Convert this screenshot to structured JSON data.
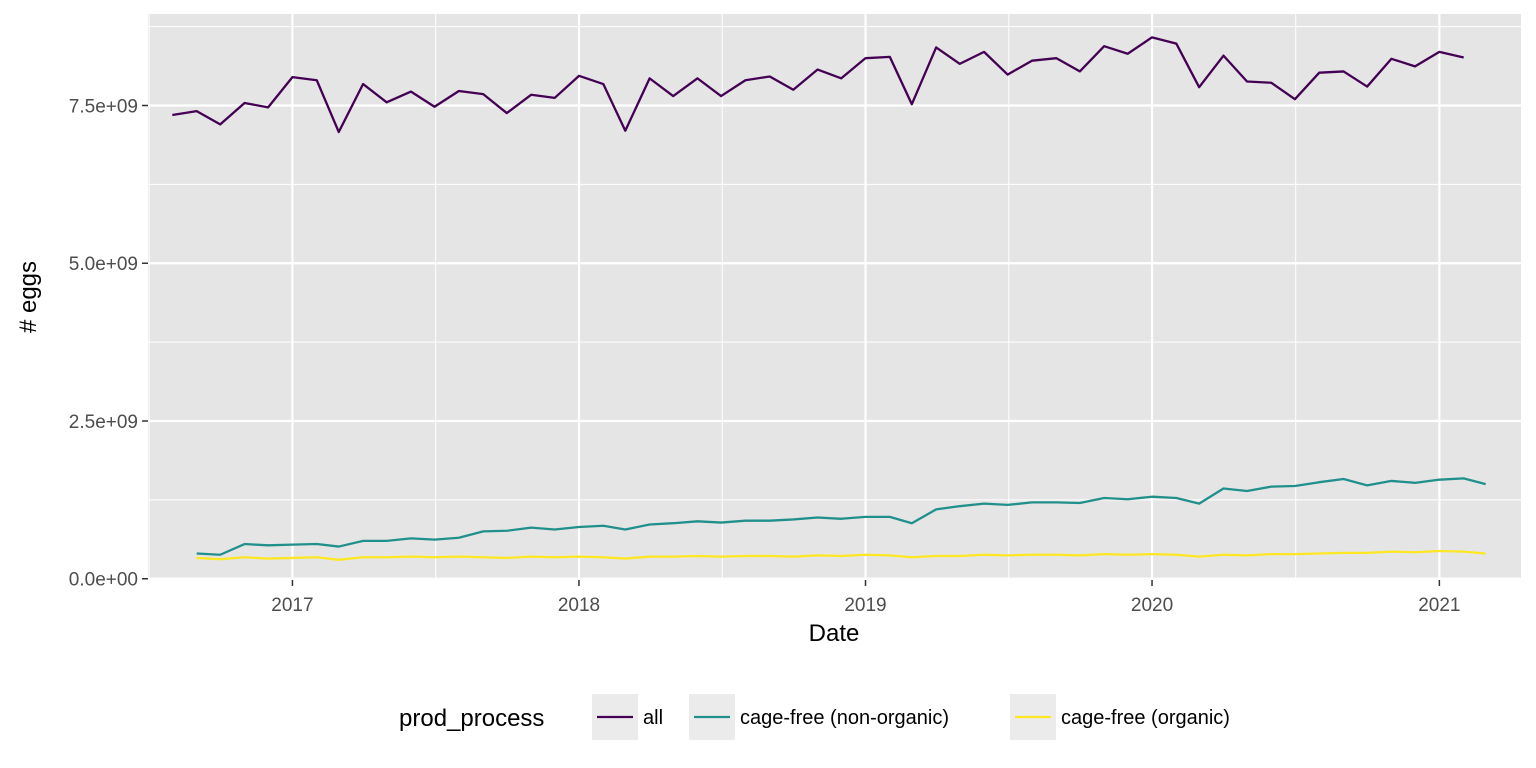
{
  "chart_data": {
    "type": "line",
    "title": "",
    "xlabel": "Date",
    "ylabel": "# eggs",
    "xlim": [
      "2016-07-01",
      "2021-04-15"
    ],
    "ylim": [
      -20000000,
      8950000000
    ],
    "x_ticks": [
      {
        "value": "2017-01-01",
        "label": "2017"
      },
      {
        "value": "2018-01-01",
        "label": "2018"
      },
      {
        "value": "2019-01-01",
        "label": "2019"
      },
      {
        "value": "2020-01-01",
        "label": "2020"
      },
      {
        "value": "2021-01-01",
        "label": "2021"
      }
    ],
    "y_ticks": [
      {
        "value": 0,
        "label": "0.0e+00"
      },
      {
        "value": 2500000000,
        "label": "2.5e+09"
      },
      {
        "value": 5000000000,
        "label": "5.0e+09"
      },
      {
        "value": 7500000000,
        "label": "7.5e+09"
      }
    ],
    "grid": true,
    "panel_background": "#e5e5e5",
    "grid_color": "#ffffff",
    "legend": {
      "title": "prod_process",
      "position": "bottom",
      "key_background": "#ebebeb"
    },
    "series": [
      {
        "name": "all",
        "color": "#440154",
        "points": [
          [
            "2016-08-01",
            7350000000
          ],
          [
            "2016-09-01",
            7410000000
          ],
          [
            "2016-10-01",
            7200000000
          ],
          [
            "2016-11-01",
            7540000000
          ],
          [
            "2016-12-01",
            7470000000
          ],
          [
            "2017-01-01",
            7950000000
          ],
          [
            "2017-02-01",
            7900000000
          ],
          [
            "2017-03-01",
            7080000000
          ],
          [
            "2017-04-01",
            7840000000
          ],
          [
            "2017-05-01",
            7550000000
          ],
          [
            "2017-06-01",
            7720000000
          ],
          [
            "2017-07-01",
            7480000000
          ],
          [
            "2017-08-01",
            7730000000
          ],
          [
            "2017-09-01",
            7680000000
          ],
          [
            "2017-10-01",
            7380000000
          ],
          [
            "2017-11-01",
            7670000000
          ],
          [
            "2017-12-01",
            7620000000
          ],
          [
            "2018-01-01",
            7970000000
          ],
          [
            "2018-02-01",
            7840000000
          ],
          [
            "2018-03-01",
            7100000000
          ],
          [
            "2018-04-01",
            7930000000
          ],
          [
            "2018-05-01",
            7650000000
          ],
          [
            "2018-06-01",
            7930000000
          ],
          [
            "2018-07-01",
            7650000000
          ],
          [
            "2018-08-01",
            7900000000
          ],
          [
            "2018-09-01",
            7960000000
          ],
          [
            "2018-10-01",
            7750000000
          ],
          [
            "2018-11-01",
            8070000000
          ],
          [
            "2018-12-01",
            7930000000
          ],
          [
            "2019-01-01",
            8250000000
          ],
          [
            "2019-02-01",
            8270000000
          ],
          [
            "2019-03-01",
            7520000000
          ],
          [
            "2019-04-01",
            8420000000
          ],
          [
            "2019-05-01",
            8160000000
          ],
          [
            "2019-06-01",
            8350000000
          ],
          [
            "2019-07-01",
            7990000000
          ],
          [
            "2019-08-01",
            8210000000
          ],
          [
            "2019-09-01",
            8250000000
          ],
          [
            "2019-10-01",
            8040000000
          ],
          [
            "2019-11-01",
            8440000000
          ],
          [
            "2019-12-01",
            8320000000
          ],
          [
            "2020-01-01",
            8580000000
          ],
          [
            "2020-02-01",
            8480000000
          ],
          [
            "2020-03-01",
            7790000000
          ],
          [
            "2020-04-01",
            8290000000
          ],
          [
            "2020-05-01",
            7880000000
          ],
          [
            "2020-06-01",
            7860000000
          ],
          [
            "2020-07-01",
            7600000000
          ],
          [
            "2020-08-01",
            8020000000
          ],
          [
            "2020-09-01",
            8040000000
          ],
          [
            "2020-10-01",
            7800000000
          ],
          [
            "2020-11-01",
            8240000000
          ],
          [
            "2020-12-01",
            8120000000
          ],
          [
            "2021-01-01",
            8350000000
          ],
          [
            "2021-02-01",
            8260000000
          ]
        ]
      },
      {
        "name": "cage-free (non-organic)",
        "color": "#21908c",
        "points": [
          [
            "2016-09-01",
            400000000
          ],
          [
            "2016-10-01",
            380000000
          ],
          [
            "2016-11-01",
            550000000
          ],
          [
            "2016-12-01",
            530000000
          ],
          [
            "2017-01-01",
            540000000
          ],
          [
            "2017-02-01",
            550000000
          ],
          [
            "2017-03-01",
            510000000
          ],
          [
            "2017-04-01",
            600000000
          ],
          [
            "2017-05-01",
            600000000
          ],
          [
            "2017-06-01",
            640000000
          ],
          [
            "2017-07-01",
            620000000
          ],
          [
            "2017-08-01",
            650000000
          ],
          [
            "2017-09-01",
            750000000
          ],
          [
            "2017-10-01",
            760000000
          ],
          [
            "2017-11-01",
            810000000
          ],
          [
            "2017-12-01",
            780000000
          ],
          [
            "2018-01-01",
            820000000
          ],
          [
            "2018-02-01",
            840000000
          ],
          [
            "2018-03-01",
            780000000
          ],
          [
            "2018-04-01",
            860000000
          ],
          [
            "2018-05-01",
            880000000
          ],
          [
            "2018-06-01",
            910000000
          ],
          [
            "2018-07-01",
            890000000
          ],
          [
            "2018-08-01",
            920000000
          ],
          [
            "2018-09-01",
            920000000
          ],
          [
            "2018-10-01",
            940000000
          ],
          [
            "2018-11-01",
            970000000
          ],
          [
            "2018-12-01",
            950000000
          ],
          [
            "2019-01-01",
            980000000
          ],
          [
            "2019-02-01",
            980000000
          ],
          [
            "2019-03-01",
            880000000
          ],
          [
            "2019-04-01",
            1100000000
          ],
          [
            "2019-05-01",
            1150000000
          ],
          [
            "2019-06-01",
            1190000000
          ],
          [
            "2019-07-01",
            1170000000
          ],
          [
            "2019-08-01",
            1210000000
          ],
          [
            "2019-09-01",
            1210000000
          ],
          [
            "2019-10-01",
            1200000000
          ],
          [
            "2019-11-01",
            1280000000
          ],
          [
            "2019-12-01",
            1260000000
          ],
          [
            "2020-01-01",
            1300000000
          ],
          [
            "2020-02-01",
            1280000000
          ],
          [
            "2020-03-01",
            1190000000
          ],
          [
            "2020-04-01",
            1430000000
          ],
          [
            "2020-05-01",
            1390000000
          ],
          [
            "2020-06-01",
            1460000000
          ],
          [
            "2020-07-01",
            1470000000
          ],
          [
            "2020-08-01",
            1530000000
          ],
          [
            "2020-09-01",
            1580000000
          ],
          [
            "2020-10-01",
            1480000000
          ],
          [
            "2020-11-01",
            1550000000
          ],
          [
            "2020-12-01",
            1520000000
          ],
          [
            "2021-01-01",
            1570000000
          ],
          [
            "2021-02-01",
            1590000000
          ],
          [
            "2021-03-01",
            1500000000
          ]
        ]
      },
      {
        "name": "cage-free (organic)",
        "color": "#fde725",
        "points": [
          [
            "2016-09-01",
            330000000
          ],
          [
            "2016-10-01",
            310000000
          ],
          [
            "2016-11-01",
            340000000
          ],
          [
            "2016-12-01",
            320000000
          ],
          [
            "2017-01-01",
            330000000
          ],
          [
            "2017-02-01",
            340000000
          ],
          [
            "2017-03-01",
            300000000
          ],
          [
            "2017-04-01",
            340000000
          ],
          [
            "2017-05-01",
            340000000
          ],
          [
            "2017-06-01",
            350000000
          ],
          [
            "2017-07-01",
            340000000
          ],
          [
            "2017-08-01",
            350000000
          ],
          [
            "2017-09-01",
            340000000
          ],
          [
            "2017-10-01",
            330000000
          ],
          [
            "2017-11-01",
            350000000
          ],
          [
            "2017-12-01",
            340000000
          ],
          [
            "2018-01-01",
            350000000
          ],
          [
            "2018-02-01",
            340000000
          ],
          [
            "2018-03-01",
            320000000
          ],
          [
            "2018-04-01",
            350000000
          ],
          [
            "2018-05-01",
            350000000
          ],
          [
            "2018-06-01",
            360000000
          ],
          [
            "2018-07-01",
            350000000
          ],
          [
            "2018-08-01",
            360000000
          ],
          [
            "2018-09-01",
            360000000
          ],
          [
            "2018-10-01",
            350000000
          ],
          [
            "2018-11-01",
            370000000
          ],
          [
            "2018-12-01",
            360000000
          ],
          [
            "2019-01-01",
            380000000
          ],
          [
            "2019-02-01",
            370000000
          ],
          [
            "2019-03-01",
            340000000
          ],
          [
            "2019-04-01",
            360000000
          ],
          [
            "2019-05-01",
            360000000
          ],
          [
            "2019-06-01",
            380000000
          ],
          [
            "2019-07-01",
            370000000
          ],
          [
            "2019-08-01",
            380000000
          ],
          [
            "2019-09-01",
            380000000
          ],
          [
            "2019-10-01",
            370000000
          ],
          [
            "2019-11-01",
            390000000
          ],
          [
            "2019-12-01",
            380000000
          ],
          [
            "2020-01-01",
            390000000
          ],
          [
            "2020-02-01",
            380000000
          ],
          [
            "2020-03-01",
            350000000
          ],
          [
            "2020-04-01",
            380000000
          ],
          [
            "2020-05-01",
            370000000
          ],
          [
            "2020-06-01",
            390000000
          ],
          [
            "2020-07-01",
            390000000
          ],
          [
            "2020-08-01",
            400000000
          ],
          [
            "2020-09-01",
            410000000
          ],
          [
            "2020-10-01",
            410000000
          ],
          [
            "2020-11-01",
            430000000
          ],
          [
            "2020-12-01",
            420000000
          ],
          [
            "2021-01-01",
            440000000
          ],
          [
            "2021-02-01",
            430000000
          ],
          [
            "2021-03-01",
            400000000
          ]
        ]
      }
    ]
  }
}
